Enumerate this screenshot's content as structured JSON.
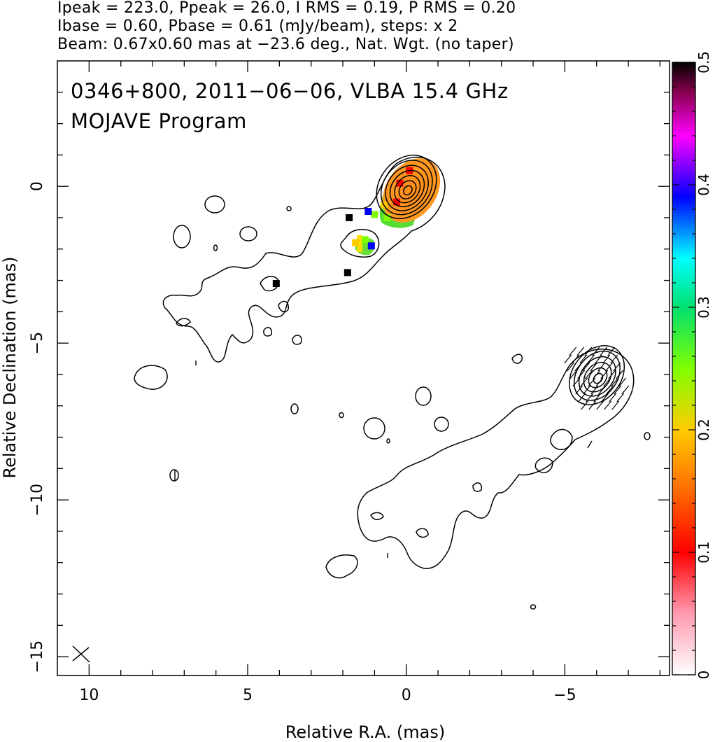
{
  "header": {
    "line1": "Ipeak = 223.0, Ppeak = 26.0, I RMS = 0.19, P RMS = 0.20",
    "line2": "Ibase = 0.60, Pbase = 0.61 (mJy/beam), steps: x 2",
    "line3": "Beam: 0.67x0.60 mas at −23.6 deg., Nat. Wgt. (no taper)"
  },
  "chart_data": {
    "type": "contour",
    "title": "",
    "annotation_lines": [
      "0346+800, 2011−06−06, VLBA 15.4 GHz",
      "MOJAVE Program"
    ],
    "xlabel": "Relative R.A. (mas)",
    "ylabel": "Relative Declination (mas)",
    "xlim": [
      11,
      -8.3
    ],
    "ylim": [
      -15.6,
      4.0
    ],
    "x_ticks": [
      10,
      5,
      0,
      -5
    ],
    "x_tick_labels": [
      "10",
      "5",
      "0",
      "−5"
    ],
    "y_ticks": [
      0,
      -5,
      -10,
      -15
    ],
    "y_tick_labels": [
      "0",
      "−5",
      "−10",
      "−15"
    ],
    "colorbar": {
      "range": [
        0,
        0.5
      ],
      "ticks": [
        0,
        0.1,
        0.2,
        0.3,
        0.4,
        0.5
      ],
      "tick_labels": [
        "0",
        "0.1",
        "0.2",
        "0.3",
        "0.4",
        "0.5"
      ]
    },
    "beam": {
      "major_mas": 0.67,
      "minor_mas": 0.6,
      "pa_deg": -23.6,
      "center": [
        10.3,
        -14.5
      ]
    },
    "cores": [
      {
        "name": "upper",
        "center": [
          0,
          0
        ],
        "levels": 7,
        "polarization": true
      },
      {
        "name": "lower",
        "center": [
          -6,
          -6
        ],
        "levels": 6,
        "polarization": false
      }
    ],
    "polarization_patches": [
      {
        "x": 0.2,
        "y": 0.1,
        "v": 0.12
      },
      {
        "x": -0.1,
        "y": 0.5,
        "v": 0.12
      },
      {
        "x": 0.3,
        "y": -0.5,
        "v": 0.13
      },
      {
        "x": 0.7,
        "y": -0.6,
        "v": 0.24
      },
      {
        "x": 1.0,
        "y": -0.9,
        "v": 0.27
      },
      {
        "x": 0.6,
        "y": -1.0,
        "v": 0.25
      },
      {
        "x": 1.2,
        "y": -0.8,
        "v": 0.4
      },
      {
        "x": 1.6,
        "y": -1.8,
        "v": 0.22
      },
      {
        "x": 1.3,
        "y": -1.7,
        "v": 0.26
      },
      {
        "x": 1.1,
        "y": -1.9,
        "v": 0.42
      },
      {
        "x": 1.85,
        "y": -2.75,
        "v": 0.5
      },
      {
        "x": 4.1,
        "y": -3.1,
        "v": 0.5
      },
      {
        "x": 1.8,
        "y": -1.0,
        "v": 0.5
      }
    ]
  }
}
